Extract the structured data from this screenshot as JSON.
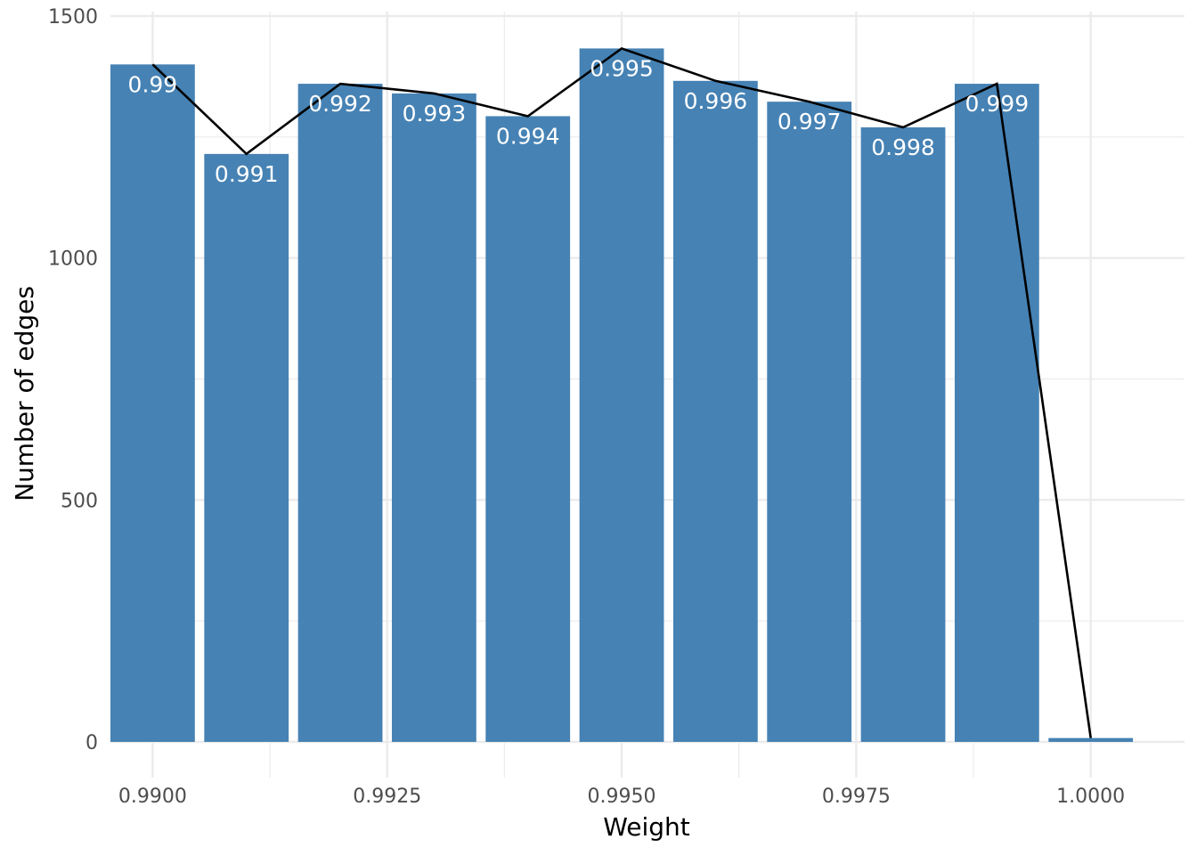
{
  "chart_data": {
    "type": "bar",
    "xlabel": "Weight",
    "ylabel": "Number of edges",
    "xlim": [
      0.98955,
      1.001
    ],
    "ylim": [
      0,
      1500
    ],
    "x_ticks": [
      "0.9900",
      "0.9925",
      "0.9950",
      "0.9975",
      "1.0000"
    ],
    "y_ticks": [
      "0",
      "500",
      "1000",
      "1500"
    ],
    "grid": true,
    "legend": "none",
    "bar_color": "#4682b4",
    "line_color": "#000000",
    "bars": [
      {
        "x": 0.99,
        "value": 1400,
        "label": "0.99"
      },
      {
        "x": 0.991,
        "value": 1215,
        "label": "0.991"
      },
      {
        "x": 0.992,
        "value": 1360,
        "label": "0.992"
      },
      {
        "x": 0.993,
        "value": 1340,
        "label": "0.993"
      },
      {
        "x": 0.994,
        "value": 1293,
        "label": "0.994"
      },
      {
        "x": 0.995,
        "value": 1433,
        "label": "0.995"
      },
      {
        "x": 0.996,
        "value": 1366,
        "label": "0.996"
      },
      {
        "x": 0.997,
        "value": 1323,
        "label": "0.997"
      },
      {
        "x": 0.998,
        "value": 1270,
        "label": "0.998"
      },
      {
        "x": 0.999,
        "value": 1360,
        "label": "0.999"
      },
      {
        "x": 1.0,
        "value": 8,
        "label": ""
      }
    ]
  }
}
